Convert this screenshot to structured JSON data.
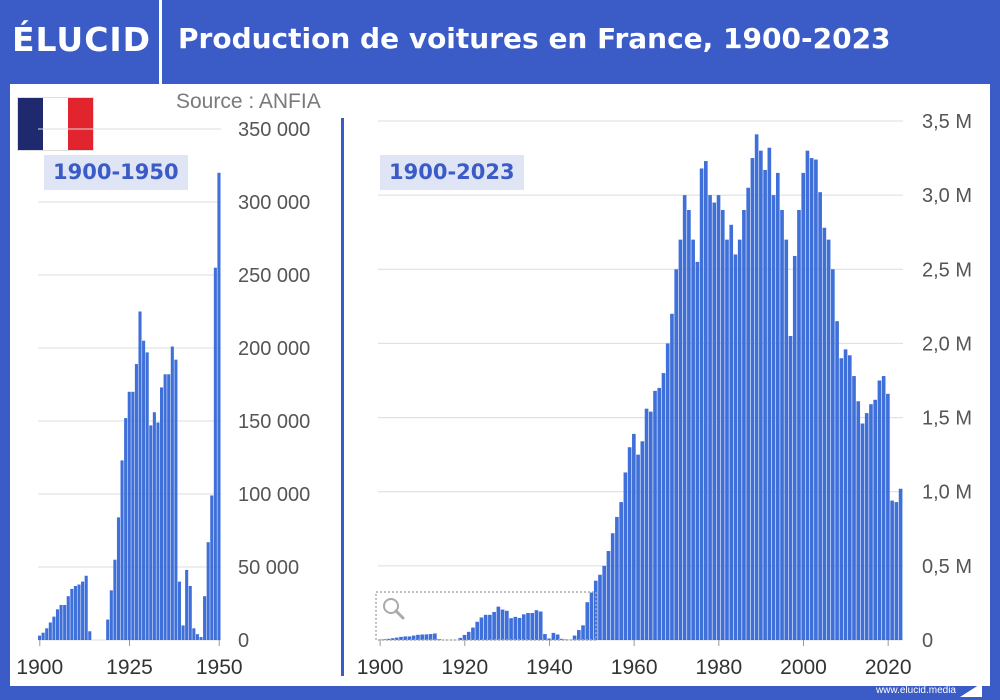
{
  "header": {
    "logo": "ÉLUCID",
    "title": "Production de voitures en France, 1900-2023"
  },
  "source": "Source : ANFIA",
  "website": "www.elucid.media",
  "flag_colors": [
    "#1f2a6e",
    "#ffffff",
    "#e1242d"
  ],
  "colors": {
    "background": "#3b5bc6",
    "bars": "#3f6fd8",
    "accent": "#3b5bc6",
    "label_bg": "#dfe5f5"
  },
  "zoom_icon": "magnifier-icon",
  "chart_data": [
    {
      "type": "bar",
      "label": "1900-1950",
      "x_start": 1900,
      "x_end": 1950,
      "ylim": [
        0,
        350000
      ],
      "ytick_values": [
        0,
        50000,
        100000,
        150000,
        200000,
        250000,
        300000,
        350000
      ],
      "ytick_labels": [
        "0",
        "50 000",
        "100 000",
        "150 000",
        "200 000",
        "250 000",
        "300 000",
        "350 000"
      ],
      "xtick_values": [
        1900,
        1925,
        1950
      ],
      "xtick_labels": [
        "1900",
        "1925",
        "1950"
      ],
      "grid": true,
      "y_axis_position": "right",
      "years": [
        1900,
        1901,
        1902,
        1903,
        1904,
        1905,
        1906,
        1907,
        1908,
        1909,
        1910,
        1911,
        1912,
        1913,
        1914,
        1915,
        1916,
        1917,
        1918,
        1919,
        1920,
        1921,
        1922,
        1923,
        1924,
        1925,
        1926,
        1927,
        1928,
        1929,
        1930,
        1931,
        1932,
        1933,
        1934,
        1935,
        1936,
        1937,
        1938,
        1939,
        1940,
        1941,
        1942,
        1943,
        1944,
        1945,
        1946,
        1947,
        1948,
        1949,
        1950
      ],
      "values": [
        3000,
        5000,
        8000,
        12000,
        16000,
        21000,
        24000,
        24000,
        30000,
        35000,
        37000,
        38000,
        40000,
        44000,
        6000,
        0,
        0,
        0,
        0,
        14000,
        34000,
        55000,
        84000,
        123000,
        152000,
        170000,
        170000,
        189000,
        225000,
        205000,
        197000,
        147000,
        156000,
        149000,
        173000,
        182000,
        182000,
        201000,
        192000,
        40000,
        10000,
        48000,
        37000,
        8000,
        4000,
        2000,
        30000,
        67000,
        99000,
        255000,
        320000
      ]
    },
    {
      "type": "bar",
      "label": "1900-2023",
      "x_start": 1900,
      "x_end": 2023,
      "ylim": [
        0,
        3500000
      ],
      "ytick_values": [
        0,
        500000,
        1000000,
        1500000,
        2000000,
        2500000,
        3000000,
        3500000
      ],
      "ytick_labels": [
        "0",
        "0,5 M",
        "1,0 M",
        "1,5 M",
        "2,0 M",
        "2,5 M",
        "3,0 M",
        "3,5 M"
      ],
      "xtick_values": [
        1900,
        1920,
        1940,
        1960,
        1980,
        2000,
        2020
      ],
      "xtick_labels": [
        "1900",
        "1920",
        "1940",
        "1960",
        "1980",
        "2000",
        "2020"
      ],
      "grid": true,
      "y_axis_position": "right",
      "zoom_box": [
        1900,
        1950
      ],
      "years": [
        1900,
        1901,
        1902,
        1903,
        1904,
        1905,
        1906,
        1907,
        1908,
        1909,
        1910,
        1911,
        1912,
        1913,
        1914,
        1915,
        1916,
        1917,
        1918,
        1919,
        1920,
        1921,
        1922,
        1923,
        1924,
        1925,
        1926,
        1927,
        1928,
        1929,
        1930,
        1931,
        1932,
        1933,
        1934,
        1935,
        1936,
        1937,
        1938,
        1939,
        1940,
        1941,
        1942,
        1943,
        1944,
        1945,
        1946,
        1947,
        1948,
        1949,
        1950,
        1951,
        1952,
        1953,
        1954,
        1955,
        1956,
        1957,
        1958,
        1959,
        1960,
        1961,
        1962,
        1963,
        1964,
        1965,
        1966,
        1967,
        1968,
        1969,
        1970,
        1971,
        1972,
        1973,
        1974,
        1975,
        1976,
        1977,
        1978,
        1979,
        1980,
        1981,
        1982,
        1983,
        1984,
        1985,
        1986,
        1987,
        1988,
        1989,
        1990,
        1991,
        1992,
        1993,
        1994,
        1995,
        1996,
        1997,
        1998,
        1999,
        2000,
        2001,
        2002,
        2003,
        2004,
        2005,
        2006,
        2007,
        2008,
        2009,
        2010,
        2011,
        2012,
        2013,
        2014,
        2015,
        2016,
        2017,
        2018,
        2019,
        2020,
        2021,
        2022,
        2023
      ],
      "values": [
        3000,
        5000,
        8000,
        12000,
        16000,
        21000,
        24000,
        24000,
        30000,
        35000,
        37000,
        38000,
        40000,
        44000,
        6000,
        0,
        0,
        0,
        0,
        14000,
        34000,
        55000,
        84000,
        123000,
        152000,
        170000,
        170000,
        189000,
        225000,
        205000,
        197000,
        147000,
        156000,
        149000,
        173000,
        182000,
        182000,
        201000,
        192000,
        40000,
        10000,
        48000,
        37000,
        8000,
        4000,
        2000,
        30000,
        67000,
        99000,
        255000,
        320000,
        400000,
        440000,
        500000,
        600000,
        720000,
        830000,
        930000,
        1130000,
        1300000,
        1390000,
        1250000,
        1340000,
        1560000,
        1540000,
        1680000,
        1700000,
        1800000,
        2000000,
        2200000,
        2500000,
        2700000,
        3000000,
        2900000,
        2700000,
        2550000,
        3180000,
        3230000,
        3000000,
        2950000,
        3000000,
        2900000,
        2700000,
        2800000,
        2600000,
        2700000,
        2900000,
        3050000,
        3250000,
        3410000,
        3300000,
        3170000,
        3320000,
        3000000,
        3150000,
        2900000,
        2700000,
        2050000,
        2590000,
        2900000,
        3150000,
        3300000,
        3250000,
        3240000,
        3020000,
        2780000,
        2700000,
        2500000,
        2150000,
        1900000,
        1960000,
        1920000,
        1780000,
        1610000,
        1460000,
        1530000,
        1590000,
        1620000,
        1750000,
        1780000,
        1660000,
        940000,
        930000,
        1020000
      ]
    }
  ]
}
